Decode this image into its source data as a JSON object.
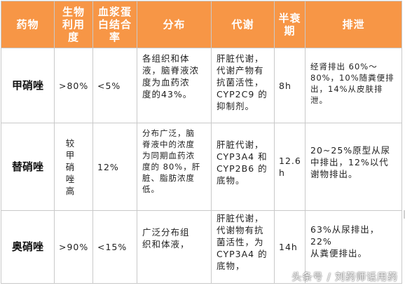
{
  "headers": [
    "药物",
    "生物\n利用\n度",
    "血浆蛋\n白结合\n率",
    "分布",
    "代谢",
    "半衰\n期",
    "排泄"
  ],
  "rows": [
    {
      "drug": "甲硝唑",
      "bioavailability": ">80%",
      "protein_binding": "<5%",
      "distribution": "各组织和体\n液，脑脊液浓\n度为血药浓\n度的43%。",
      "metabolism": "肝脏代谢，\n代谢产物有\n抗菌活性，\nCYP2C9  的\n抑制剂。",
      "half_life": "8h",
      "excretion": "经肾排出 60%～\n80%，10%随粪便排\n出，14%从皮肤排泄。"
    },
    {
      "drug": "替硝唑",
      "bioavailability": "较 甲\n硝 唑\n高",
      "protein_binding": "12%",
      "distribution": "分布广泛，脑\n脊液中的浓度\n为同期血药浓\n度的 80%，肝\n脏、脂肪浓度\n低。",
      "metabolism": "肝脏代谢，\nCYP3A4  和\nCYP2B6  的\n底物。",
      "half_life": "12.6\nh",
      "excretion": "20~25%原型从尿\n中排出，12%以代\n谢物排出。"
    },
    {
      "drug": "奥硝唑",
      "bioavailability": ">90%",
      "protein_binding": "<15%",
      "distribution": "广泛分布组\n织和体液，",
      "metabolism": "肝脏代谢，\n代谢物有抗\n菌活性，为\nCYP3A4  的\n底物，",
      "half_life": "14h",
      "excretion": "63%从尿排出，22%\n从粪便排出。"
    }
  ],
  "watermark": "头条号 / 刘药师话用药",
  "colors": {
    "header_bg": "#f79646",
    "header_text": "#ffffff",
    "border": "#c9c9c9"
  }
}
